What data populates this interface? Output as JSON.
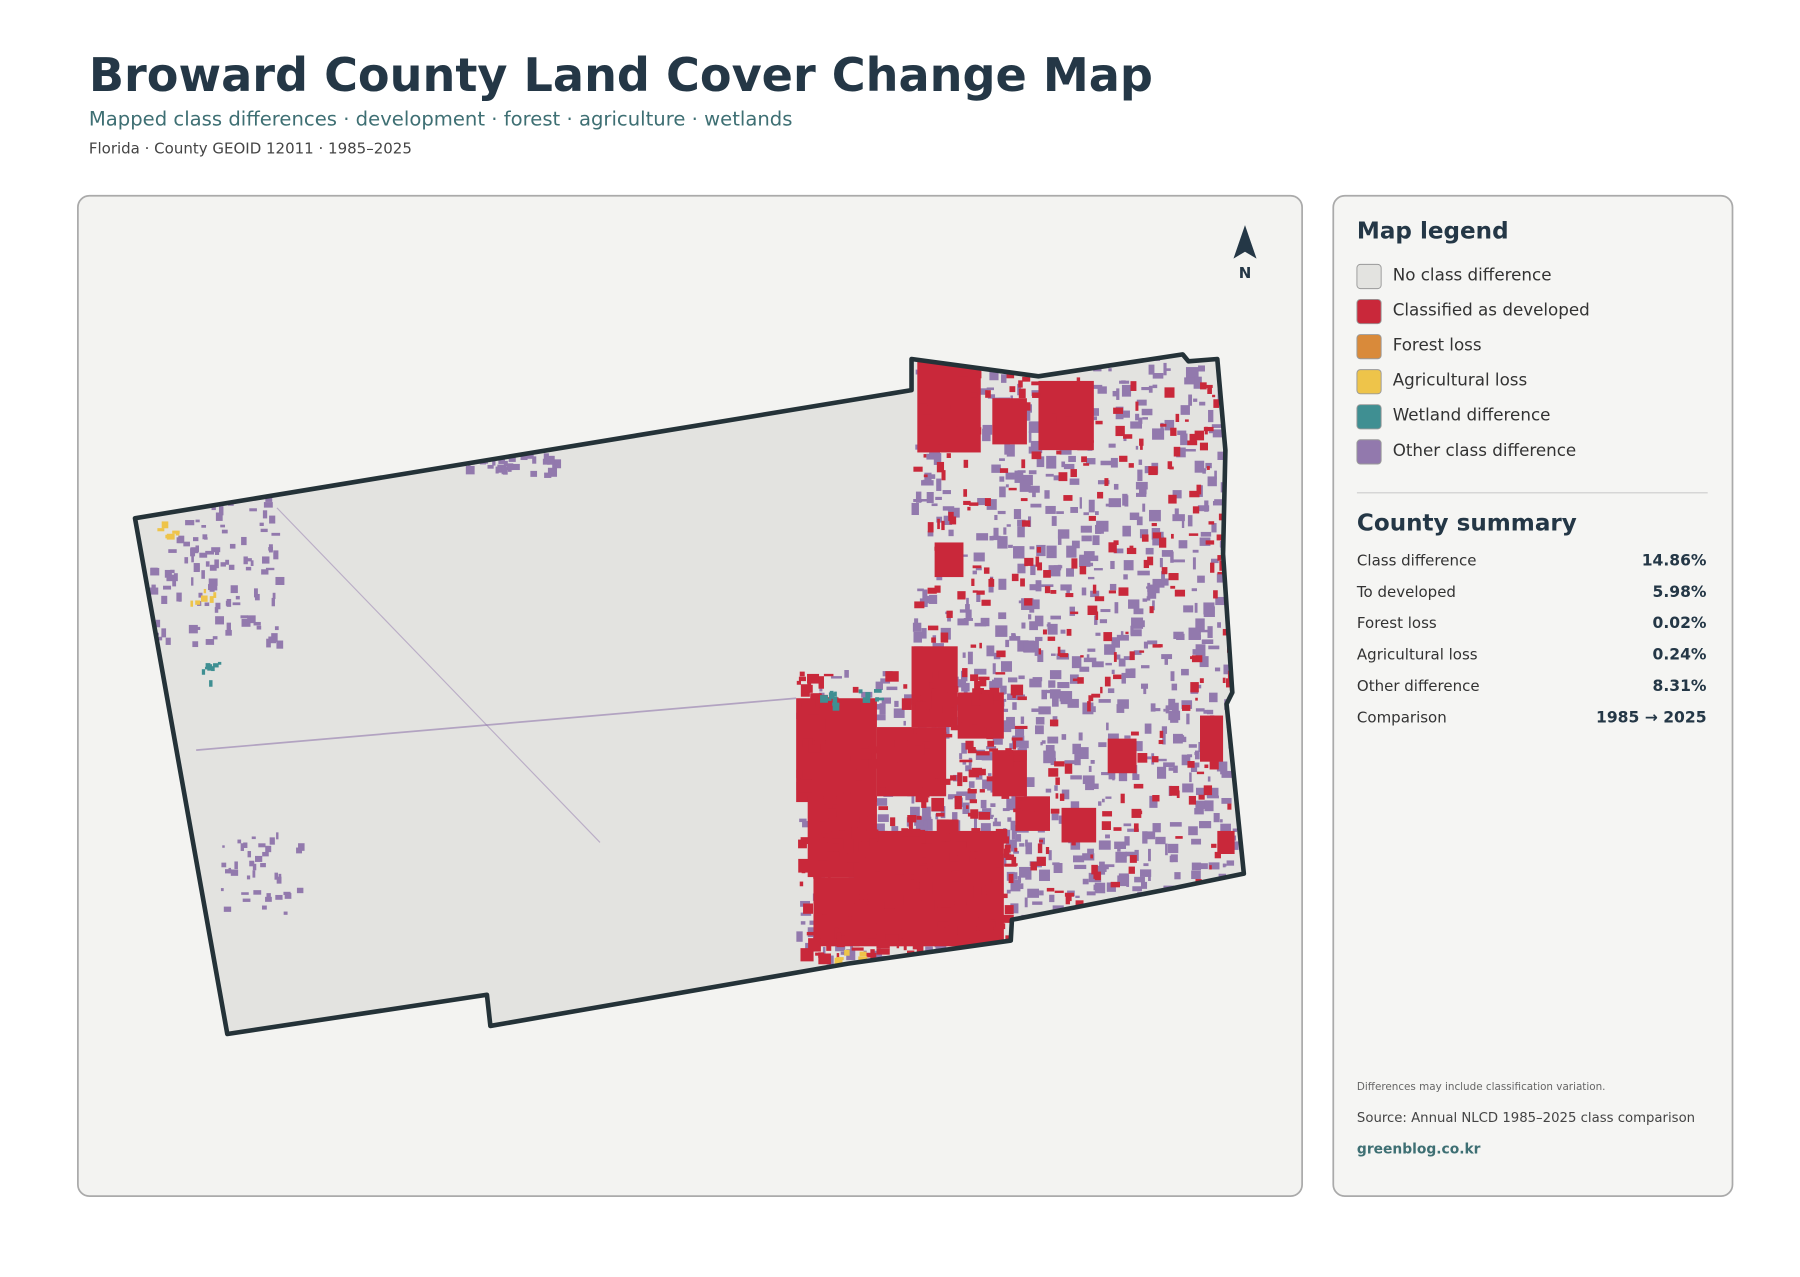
{
  "header": {
    "title": "Broward County Land Cover Change Map",
    "subtitle": "Mapped class differences · development · forest · agriculture · wetlands",
    "meta": "Florida · County GEOID 12011 · 1985–2025"
  },
  "map": {
    "north_label": "N"
  },
  "legend": {
    "title": "Map legend",
    "items": [
      {
        "label": "No class difference",
        "color": "#e3e3e0"
      },
      {
        "label": "Classified as developed",
        "color": "#c9283a"
      },
      {
        "label": "Forest loss",
        "color": "#d98a3a"
      },
      {
        "label": "Agricultural loss",
        "color": "#eec44a"
      },
      {
        "label": "Wetland difference",
        "color": "#3f8f92"
      },
      {
        "label": "Other class difference",
        "color": "#9279ad"
      }
    ]
  },
  "summary": {
    "title": "County summary",
    "rows": [
      [
        "Class difference",
        "14.86%"
      ],
      [
        "To developed",
        "5.98%"
      ],
      [
        "Forest loss",
        "0.02%"
      ],
      [
        "Agricultural loss",
        "0.24%"
      ],
      [
        "Other difference",
        "8.31%"
      ],
      [
        "Comparison",
        "1985 → 2025"
      ]
    ]
  },
  "footer": {
    "note": "Differences may include classification variation.",
    "source": "Source: Annual NLCD 1985–2025 class comparison",
    "site": "greenblog.co.kr"
  }
}
